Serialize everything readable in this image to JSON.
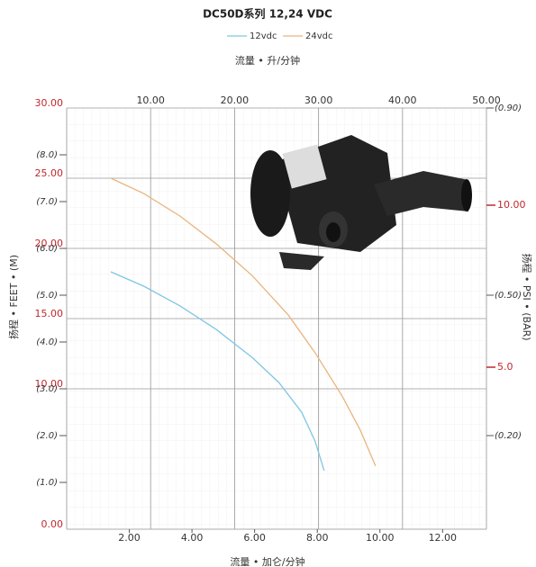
{
  "chart_data": {
    "type": "line",
    "title": "DC50D系列  12,24 VDC",
    "xlabel": "流量 • 加仑/分钟",
    "x2label": "流量 • 升/分钟",
    "ylabel": "扬程 • FEET • (M)",
    "y2label": "扬程 • PSI • (BAR)",
    "xlim": [
      0,
      13.4
    ],
    "xticks": [
      {
        "value": 2,
        "label": "2.00"
      },
      {
        "value": 4,
        "label": "4.00"
      },
      {
        "value": 6,
        "label": "6.00"
      },
      {
        "value": 8,
        "label": "8.00"
      },
      {
        "value": 10,
        "label": "10.00"
      },
      {
        "value": 12,
        "label": "12.00"
      }
    ],
    "x2lim": [
      0,
      50
    ],
    "x2ticks": [
      {
        "value": 10,
        "label": "10.00"
      },
      {
        "value": 20,
        "label": "20.00"
      },
      {
        "value": 30,
        "label": "30.00"
      },
      {
        "value": 40,
        "label": "40.00"
      },
      {
        "value": 50,
        "label": "50.00"
      }
    ],
    "ylim": [
      0,
      9
    ],
    "yticks": [
      {
        "value": 1,
        "label": "(1.0)"
      },
      {
        "value": 2,
        "label": "(2.0)"
      },
      {
        "value": 3,
        "label": "(3.0)"
      },
      {
        "value": 4,
        "label": "(4.0)"
      },
      {
        "value": 5,
        "label": "(5.0)"
      },
      {
        "value": 6,
        "label": "(6.0)"
      },
      {
        "value": 7,
        "label": "(7.0)"
      },
      {
        "value": 8,
        "label": "(8.0)"
      }
    ],
    "yfeet_lim": [
      0,
      30
    ],
    "yfeet_ticks": [
      {
        "value": 0,
        "label": "0.00"
      },
      {
        "value": 10,
        "label": "10.00"
      },
      {
        "value": 15,
        "label": "15.00"
      },
      {
        "value": 20,
        "label": "20.00"
      },
      {
        "value": 25,
        "label": "25.00"
      },
      {
        "value": 30,
        "label": "30.00"
      }
    ],
    "y2lim": [
      0,
      13
    ],
    "y2ticks": [
      {
        "value": 5,
        "label": "5.0"
      },
      {
        "value": 10,
        "label": "10.00"
      }
    ],
    "ybar_lim": [
      0,
      0.9
    ],
    "ybar_ticks": [
      {
        "value": 0.2,
        "label": "(0.20)"
      },
      {
        "value": 0.5,
        "label": "(0.50)"
      },
      {
        "value": 0.9,
        "label": "(0.90)"
      }
    ],
    "grid": true,
    "series": [
      {
        "name": "12vdc",
        "color": "#7fc6e4",
        "x": [
          1.41,
          2.47,
          3.62,
          4.77,
          5.92,
          6.78,
          7.5,
          7.93,
          8.22
        ],
        "values": [
          5.5,
          5.19,
          4.77,
          4.27,
          3.67,
          3.13,
          2.5,
          1.88,
          1.25
        ]
      },
      {
        "name": "24vdc",
        "color": "#e9b47e",
        "x": [
          1.41,
          2.47,
          3.62,
          4.77,
          5.92,
          7.07,
          7.93,
          8.79,
          9.37,
          9.86
        ],
        "values": [
          7.5,
          7.17,
          6.69,
          6.1,
          5.42,
          4.58,
          3.77,
          2.85,
          2.12,
          1.35
        ]
      }
    ]
  }
}
